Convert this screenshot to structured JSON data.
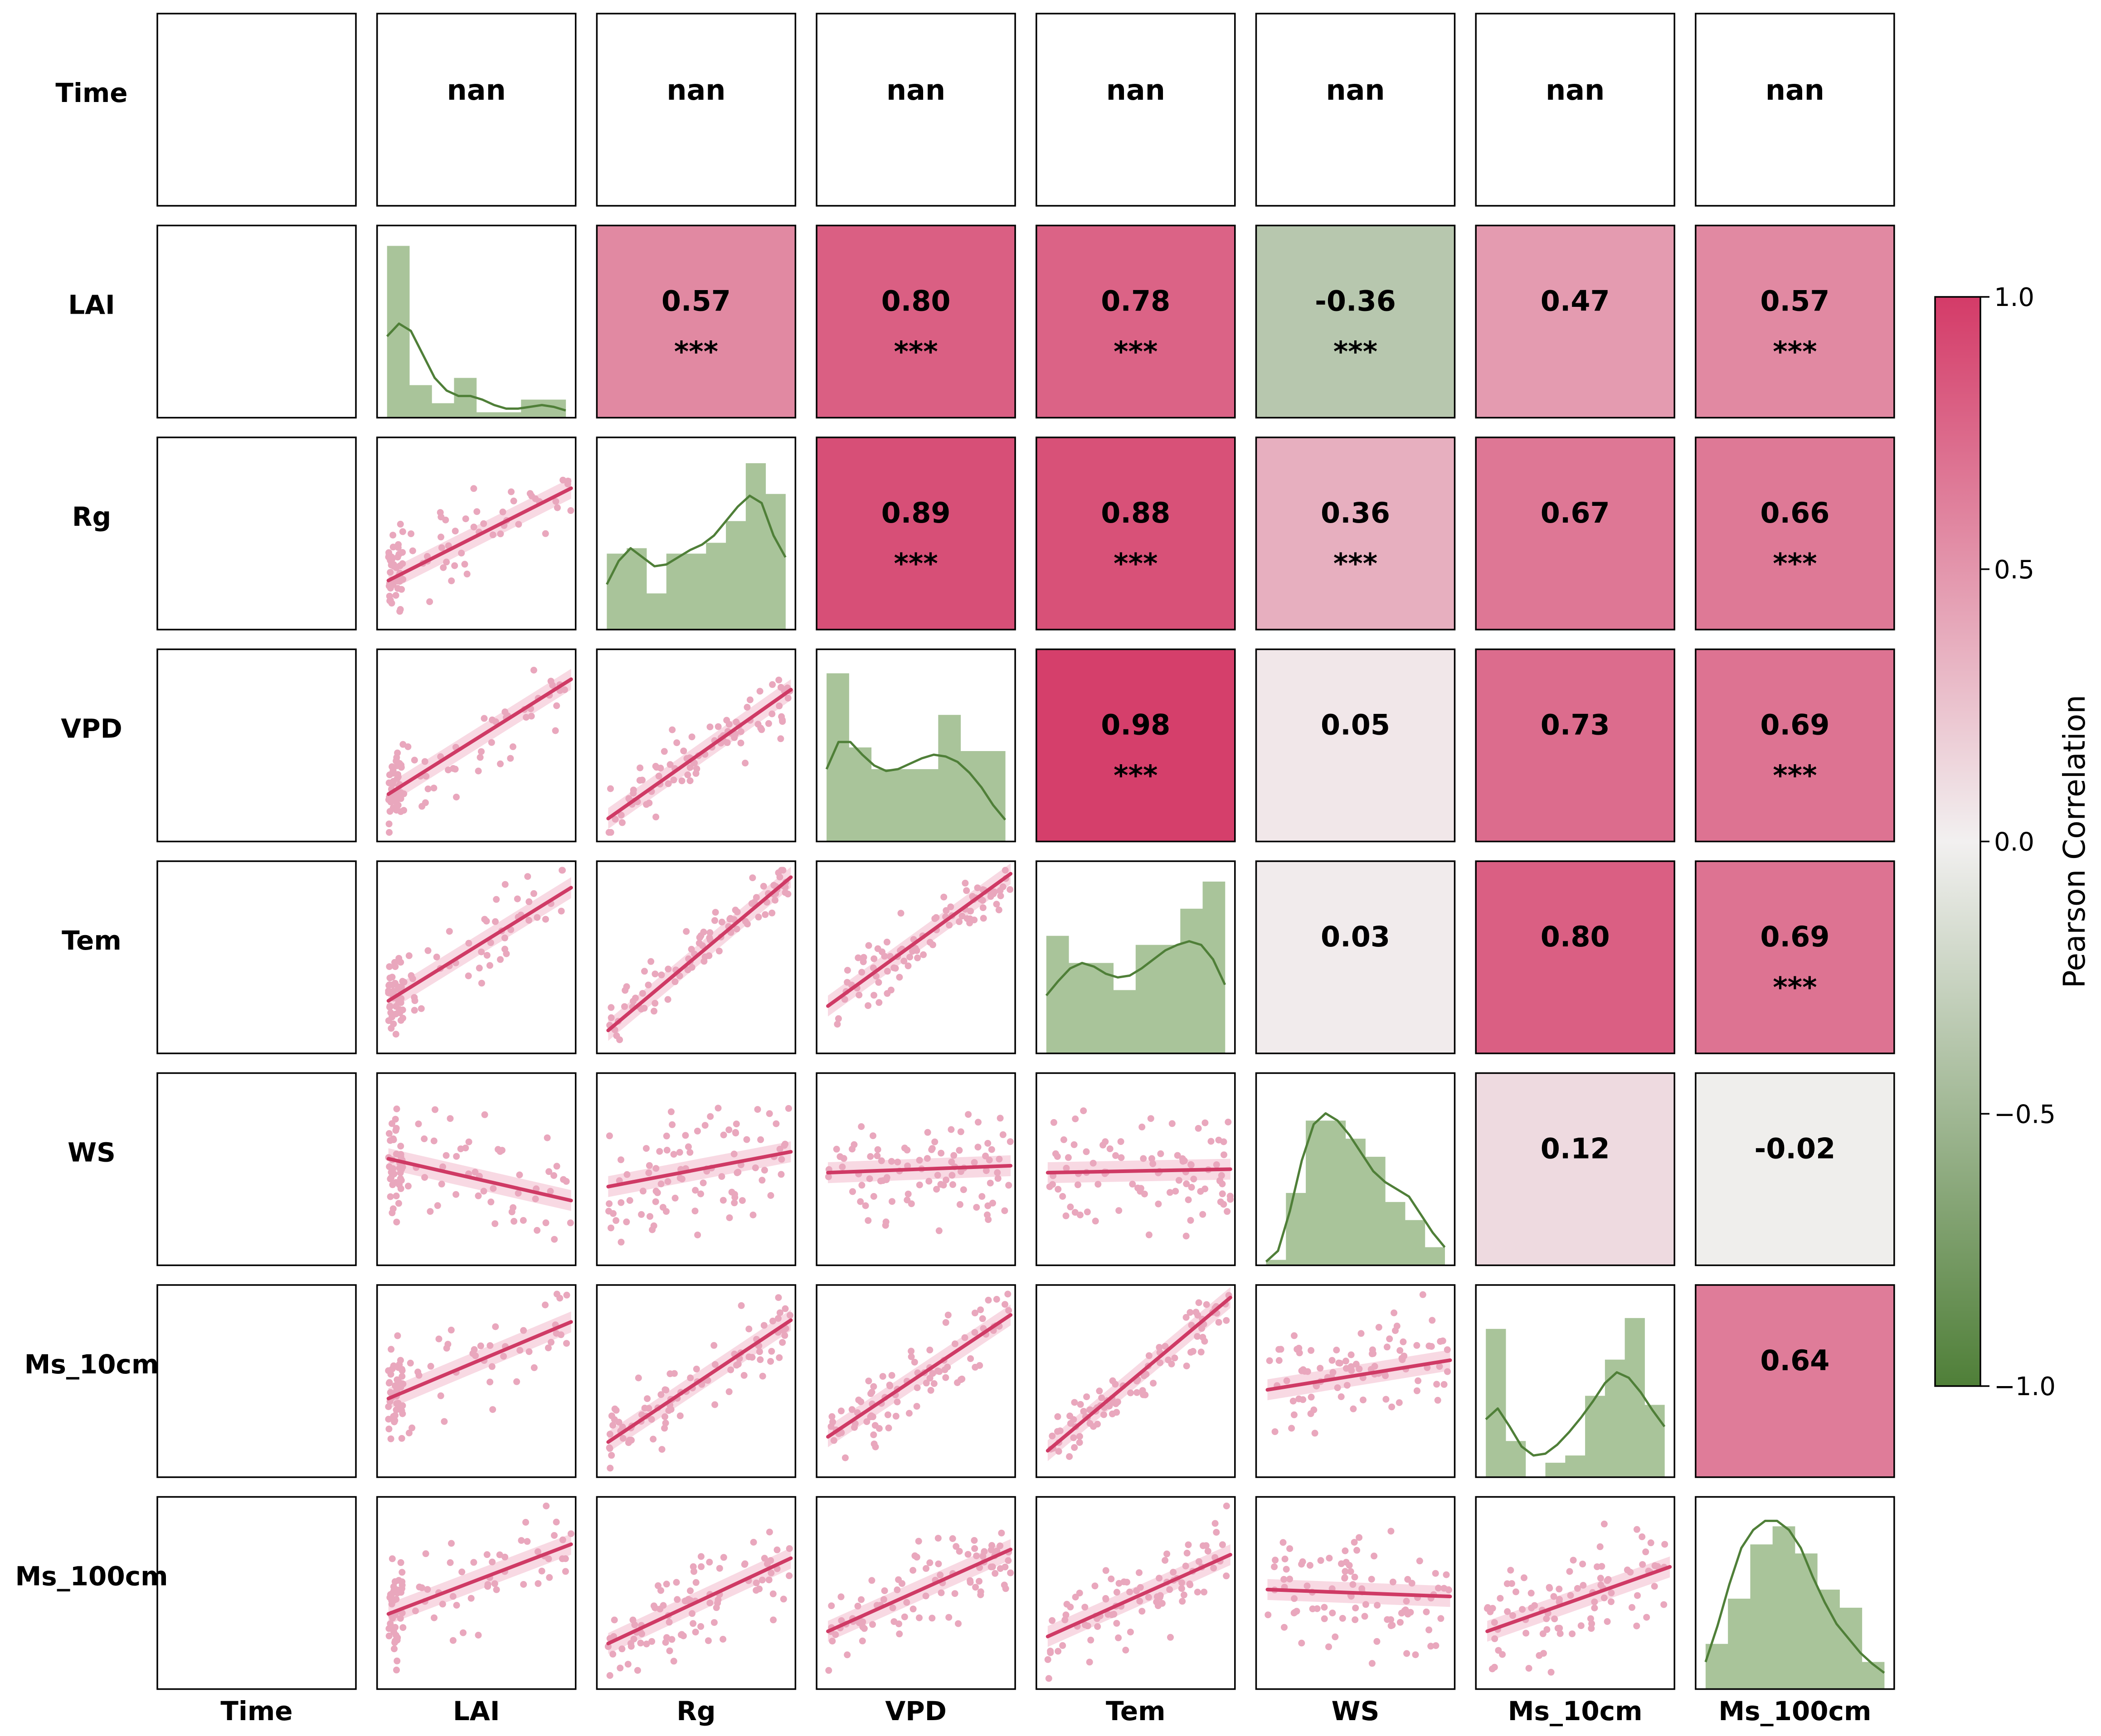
{
  "chart_data": {
    "type": "pairplot-correlation-matrix",
    "variables": [
      "Time",
      "LAI",
      "Rg",
      "VPD",
      "Tem",
      "WS",
      "Ms_10cm",
      "Ms_100cm"
    ],
    "nan_label": "nan",
    "upper": [
      {
        "row": "Time",
        "col": "LAI",
        "r": null,
        "text": "nan",
        "sig": ""
      },
      {
        "row": "Time",
        "col": "Rg",
        "r": null,
        "text": "nan",
        "sig": ""
      },
      {
        "row": "Time",
        "col": "VPD",
        "r": null,
        "text": "nan",
        "sig": ""
      },
      {
        "row": "Time",
        "col": "Tem",
        "r": null,
        "text": "nan",
        "sig": ""
      },
      {
        "row": "Time",
        "col": "WS",
        "r": null,
        "text": "nan",
        "sig": ""
      },
      {
        "row": "Time",
        "col": "Ms_10cm",
        "r": null,
        "text": "nan",
        "sig": ""
      },
      {
        "row": "Time",
        "col": "Ms_100cm",
        "r": null,
        "text": "nan",
        "sig": ""
      },
      {
        "row": "LAI",
        "col": "Rg",
        "r": 0.57,
        "text": "0.57",
        "sig": "***"
      },
      {
        "row": "LAI",
        "col": "VPD",
        "r": 0.8,
        "text": "0.80",
        "sig": "***"
      },
      {
        "row": "LAI",
        "col": "Tem",
        "r": 0.78,
        "text": "0.78",
        "sig": "***"
      },
      {
        "row": "LAI",
        "col": "WS",
        "r": -0.36,
        "text": "-0.36",
        "sig": "***"
      },
      {
        "row": "LAI",
        "col": "Ms_10cm",
        "r": 0.47,
        "text": "0.47",
        "sig": ""
      },
      {
        "row": "LAI",
        "col": "Ms_100cm",
        "r": 0.57,
        "text": "0.57",
        "sig": "***"
      },
      {
        "row": "Rg",
        "col": "VPD",
        "r": 0.89,
        "text": "0.89",
        "sig": "***"
      },
      {
        "row": "Rg",
        "col": "Tem",
        "r": 0.88,
        "text": "0.88",
        "sig": "***"
      },
      {
        "row": "Rg",
        "col": "WS",
        "r": 0.36,
        "text": "0.36",
        "sig": "***"
      },
      {
        "row": "Rg",
        "col": "Ms_10cm",
        "r": 0.67,
        "text": "0.67",
        "sig": ""
      },
      {
        "row": "Rg",
        "col": "Ms_100cm",
        "r": 0.66,
        "text": "0.66",
        "sig": "***"
      },
      {
        "row": "VPD",
        "col": "Tem",
        "r": 0.98,
        "text": "0.98",
        "sig": "***"
      },
      {
        "row": "VPD",
        "col": "WS",
        "r": 0.05,
        "text": "0.05",
        "sig": ""
      },
      {
        "row": "VPD",
        "col": "Ms_10cm",
        "r": 0.73,
        "text": "0.73",
        "sig": ""
      },
      {
        "row": "VPD",
        "col": "Ms_100cm",
        "r": 0.69,
        "text": "0.69",
        "sig": "***"
      },
      {
        "row": "Tem",
        "col": "WS",
        "r": 0.03,
        "text": "0.03",
        "sig": ""
      },
      {
        "row": "Tem",
        "col": "Ms_10cm",
        "r": 0.8,
        "text": "0.80",
        "sig": ""
      },
      {
        "row": "Tem",
        "col": "Ms_100cm",
        "r": 0.69,
        "text": "0.69",
        "sig": "***"
      },
      {
        "row": "WS",
        "col": "Ms_10cm",
        "r": 0.12,
        "text": "0.12",
        "sig": ""
      },
      {
        "row": "WS",
        "col": "Ms_100cm",
        "r": -0.02,
        "text": "-0.02",
        "sig": ""
      },
      {
        "row": "Ms_10cm",
        "col": "Ms_100cm",
        "r": 0.64,
        "text": "0.64",
        "sig": ""
      }
    ],
    "diagonal_histograms": {
      "LAI": [
        0.95,
        0.18,
        0.08,
        0.22,
        0.03,
        0.03,
        0.1,
        0.1
      ],
      "Rg": [
        0.42,
        0.45,
        0.2,
        0.42,
        0.42,
        0.48,
        0.6,
        0.92,
        0.75
      ],
      "VPD": [
        0.93,
        0.52,
        0.4,
        0.4,
        0.4,
        0.7,
        0.5,
        0.5
      ],
      "Tem": [
        0.65,
        0.5,
        0.5,
        0.35,
        0.6,
        0.6,
        0.8,
        0.95
      ],
      "WS": [
        0.03,
        0.4,
        0.8,
        0.8,
        0.7,
        0.6,
        0.35,
        0.25,
        0.1
      ],
      "Ms_10cm": [
        0.82,
        0.2,
        0.0,
        0.08,
        0.12,
        0.45,
        0.65,
        0.88,
        0.4
      ],
      "Ms_100cm": [
        0.25,
        0.5,
        0.8,
        0.9,
        0.75,
        0.55,
        0.45,
        0.15
      ]
    },
    "diagonal_kde": {
      "LAI": [
        0.45,
        0.52,
        0.48,
        0.35,
        0.22,
        0.15,
        0.12,
        0.12,
        0.1,
        0.07,
        0.05,
        0.05,
        0.06,
        0.07,
        0.06,
        0.04
      ],
      "Rg": [
        0.25,
        0.38,
        0.45,
        0.4,
        0.35,
        0.36,
        0.4,
        0.44,
        0.47,
        0.52,
        0.6,
        0.68,
        0.74,
        0.7,
        0.52,
        0.4
      ],
      "VPD": [
        0.4,
        0.55,
        0.55,
        0.48,
        0.42,
        0.39,
        0.4,
        0.43,
        0.46,
        0.48,
        0.47,
        0.44,
        0.38,
        0.3,
        0.2,
        0.12
      ],
      "Tem": [
        0.32,
        0.4,
        0.47,
        0.5,
        0.48,
        0.44,
        0.42,
        0.43,
        0.47,
        0.52,
        0.57,
        0.6,
        0.62,
        0.6,
        0.52,
        0.38
      ],
      "WS": [
        0.02,
        0.08,
        0.3,
        0.58,
        0.78,
        0.84,
        0.8,
        0.72,
        0.62,
        0.52,
        0.46,
        0.42,
        0.38,
        0.28,
        0.18,
        0.1
      ],
      "Ms_10cm": [
        0.32,
        0.38,
        0.28,
        0.17,
        0.12,
        0.13,
        0.18,
        0.25,
        0.33,
        0.42,
        0.52,
        0.58,
        0.55,
        0.47,
        0.37,
        0.28
      ],
      "Ms_100cm": [
        0.15,
        0.35,
        0.58,
        0.78,
        0.88,
        0.93,
        0.93,
        0.88,
        0.78,
        0.62,
        0.48,
        0.36,
        0.28,
        0.2,
        0.14,
        0.09
      ]
    },
    "lower_fits": {
      "LAI|Rg": [
        0.23,
        0.76
      ],
      "LAI|VPD": [
        0.22,
        0.88
      ],
      "LAI|Tem": [
        0.25,
        0.9
      ],
      "LAI|WS": [
        0.56,
        0.32
      ],
      "LAI|Ms_10cm": [
        0.4,
        0.84
      ],
      "LAI|Ms_100cm": [
        0.38,
        0.78
      ],
      "Rg|VPD": [
        0.08,
        0.82
      ],
      "Rg|Tem": [
        0.08,
        0.96
      ],
      "Rg|WS": [
        0.4,
        0.6
      ],
      "Rg|Ms_10cm": [
        0.15,
        0.85
      ],
      "Rg|Ms_100cm": [
        0.21,
        0.7
      ],
      "VPD|Tem": [
        0.22,
        0.98
      ],
      "VPD|WS": [
        0.48,
        0.52
      ],
      "VPD|Ms_10cm": [
        0.18,
        0.88
      ],
      "VPD|Ms_100cm": [
        0.28,
        0.75
      ],
      "Tem|WS": [
        0.48,
        0.5
      ],
      "Tem|Ms_10cm": [
        0.1,
        0.98
      ],
      "Tem|Ms_100cm": [
        0.25,
        0.72
      ],
      "WS|Ms_10cm": [
        0.45,
        0.62
      ],
      "WS|Ms_100cm": [
        0.52,
        0.48
      ],
      "Ms_10cm|Ms_100cm": [
        0.28,
        0.65
      ]
    },
    "colorbar": {
      "label": "Pearson Correlation",
      "range": [
        -1.0,
        1.0
      ],
      "ticks": [
        1.0,
        0.5,
        0.0,
        -0.5,
        -1.0
      ],
      "tick_labels": [
        "1.0",
        "0.5",
        "0.0",
        "−0.5",
        "−1.0"
      ]
    },
    "colors": {
      "negative": "#4f7f38",
      "zero": "#f2f0f0",
      "positive": "#d43b68",
      "hist_fill": "#a9c49a",
      "kde_line": "#4f7f38",
      "scatter_point": "#e9a7bd",
      "fit_line": "#cf3a65",
      "fit_band": "#f4c5d4"
    }
  }
}
